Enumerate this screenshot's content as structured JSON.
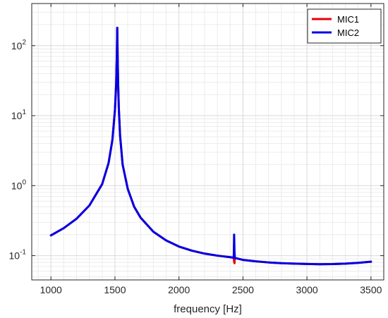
{
  "chart_data": {
    "type": "line",
    "title": "",
    "xlabel": "frequency [Hz]",
    "ylabel": "",
    "xscale": "linear",
    "yscale": "log",
    "xlim": [
      850,
      3600
    ],
    "ylim": [
      0.045,
      400
    ],
    "grid": true,
    "minor_grid": true,
    "legend_position": "top-right",
    "x_ticks": [
      1000,
      1500,
      2000,
      2500,
      3000,
      3500
    ],
    "x_tick_labels": [
      "1000",
      "1500",
      "2000",
      "2500",
      "3000",
      "3500"
    ],
    "y_ticks": [
      {
        "value": 0.1,
        "base": "10",
        "exp": "-1"
      },
      {
        "value": 1,
        "base": "10",
        "exp": "0"
      },
      {
        "value": 10,
        "base": "10",
        "exp": "1"
      },
      {
        "value": 100,
        "base": "10",
        "exp": "2"
      }
    ],
    "series": [
      {
        "name": "MIC1",
        "color": "#e8000b",
        "x": [
          1000,
          1100,
          1200,
          1300,
          1400,
          1450,
          1480,
          1500,
          1510,
          1515,
          1518,
          1521,
          1525,
          1530,
          1540,
          1560,
          1600,
          1650,
          1700,
          1800,
          1900,
          2000,
          2100,
          2200,
          2300,
          2400,
          2420,
          2428,
          2431,
          2434,
          2437,
          2445,
          2500,
          2600,
          2700,
          2800,
          2900,
          3000,
          3100,
          3200,
          3300,
          3400,
          3500
        ],
        "y": [
          0.195,
          0.247,
          0.337,
          0.52,
          1.05,
          2.1,
          4.5,
          12,
          30,
          75,
          180,
          70,
          28,
          13,
          5.2,
          2.0,
          0.9,
          0.5,
          0.35,
          0.22,
          0.165,
          0.135,
          0.118,
          0.107,
          0.1,
          0.095,
          0.094,
          0.093,
          0.082,
          0.078,
          0.093,
          0.092,
          0.087,
          0.083,
          0.08,
          0.078,
          0.077,
          0.076,
          0.0755,
          0.0758,
          0.077,
          0.079,
          0.082
        ]
      },
      {
        "name": "MIC2",
        "color": "#0000e6",
        "x": [
          1000,
          1100,
          1200,
          1300,
          1400,
          1450,
          1480,
          1500,
          1510,
          1515,
          1518,
          1521,
          1525,
          1530,
          1540,
          1560,
          1600,
          1650,
          1700,
          1800,
          1900,
          2000,
          2100,
          2200,
          2300,
          2400,
          2420,
          2428,
          2431,
          2434,
          2437,
          2445,
          2500,
          2600,
          2700,
          2800,
          2900,
          3000,
          3100,
          3200,
          3300,
          3400,
          3500
        ],
        "y": [
          0.195,
          0.247,
          0.337,
          0.52,
          1.05,
          2.1,
          4.5,
          12,
          30,
          75,
          180,
          70,
          28,
          13,
          5.2,
          2.0,
          0.9,
          0.5,
          0.35,
          0.22,
          0.165,
          0.135,
          0.118,
          0.107,
          0.1,
          0.095,
          0.094,
          0.093,
          0.2,
          0.11,
          0.093,
          0.092,
          0.087,
          0.083,
          0.08,
          0.078,
          0.077,
          0.076,
          0.0755,
          0.0758,
          0.077,
          0.079,
          0.082
        ]
      }
    ]
  }
}
